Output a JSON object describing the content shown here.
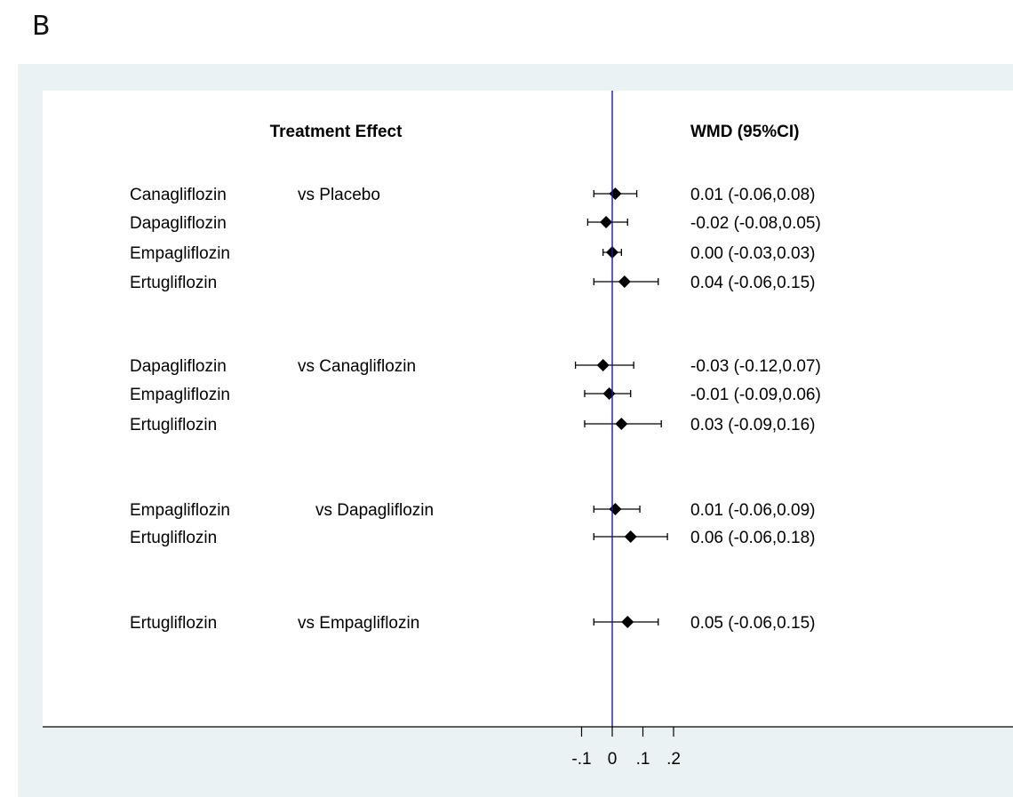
{
  "panel_label": "B",
  "colors": {
    "outer_background": "#eaf2f3",
    "plot_background": "#ffffff",
    "null_line": "#1a1aa6",
    "marker": "#000000"
  },
  "chart_data": {
    "type": "forest",
    "left_header": "Treatment Effect",
    "right_header": "WMD (95%CI)",
    "null_value": 0,
    "x_ticks": [
      -0.1,
      0,
      0.1,
      0.2
    ],
    "x_tick_labels": [
      "-.1",
      "0",
      ".1",
      ".2"
    ],
    "rows": [
      {
        "drug": "Canagliflozin",
        "comparator": "vs Placebo",
        "est": 0.01,
        "lo": -0.06,
        "hi": 0.08,
        "label": "0.01 (-0.06,0.08)"
      },
      {
        "drug": "Dapagliflozin",
        "comparator": "",
        "est": -0.02,
        "lo": -0.08,
        "hi": 0.05,
        "label": "-0.02 (-0.08,0.05)"
      },
      {
        "drug": "Empagliflozin",
        "comparator": "",
        "est": 0.0,
        "lo": -0.03,
        "hi": 0.03,
        "label": "0.00 (-0.03,0.03)"
      },
      {
        "drug": "Ertugliflozin",
        "comparator": "",
        "est": 0.04,
        "lo": -0.06,
        "hi": 0.15,
        "label": "0.04 (-0.06,0.15)"
      },
      {
        "drug": "Dapagliflozin",
        "comparator": "vs Canagliflozin",
        "est": -0.03,
        "lo": -0.12,
        "hi": 0.07,
        "label": "-0.03 (-0.12,0.07)"
      },
      {
        "drug": "Empagliflozin",
        "comparator": "",
        "est": -0.01,
        "lo": -0.09,
        "hi": 0.06,
        "label": "-0.01 (-0.09,0.06)"
      },
      {
        "drug": "Ertugliflozin",
        "comparator": "",
        "est": 0.03,
        "lo": -0.09,
        "hi": 0.16,
        "label": "0.03 (-0.09,0.16)"
      },
      {
        "drug": "Empagliflozin",
        "comparator": "vs Dapagliflozin",
        "est": 0.01,
        "lo": -0.06,
        "hi": 0.09,
        "label": "0.01 (-0.06,0.09)"
      },
      {
        "drug": "Ertugliflozin",
        "comparator": "",
        "est": 0.06,
        "lo": -0.06,
        "hi": 0.18,
        "label": "0.06 (-0.06,0.18)"
      },
      {
        "drug": "Ertugliflozin",
        "comparator": "vs Empagliflozin",
        "est": 0.05,
        "lo": -0.06,
        "hi": 0.15,
        "label": "0.05 (-0.06,0.15)"
      }
    ]
  }
}
